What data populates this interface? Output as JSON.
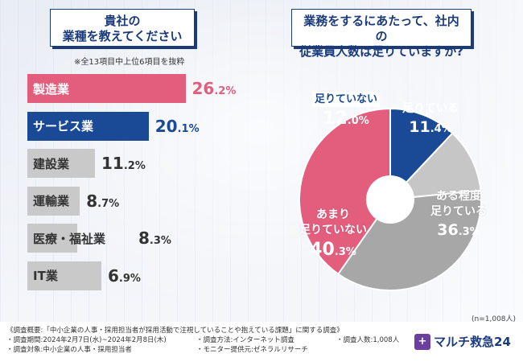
{
  "q1": {
    "line1": "貴社の",
    "line2": "業種を教えてください"
  },
  "q2": {
    "line1": "業務をするにあたって、社内の",
    "line2": "従業員人数は足りていますか?"
  },
  "note": "※全13項目中上位6項目を抜粋",
  "chart_data": [
    {
      "type": "bar",
      "orientation": "horizontal",
      "title": "貴社の業種を教えてください",
      "categories": [
        "製造業",
        "サービス業",
        "建設業",
        "運輸業",
        "医療・福祉業",
        "IT業"
      ],
      "values": [
        26.2,
        20.1,
        11.2,
        8.7,
        8.3,
        6.9
      ],
      "value_labels": [
        {
          "int": "26",
          "dec": ".2",
          "unit": "%"
        },
        {
          "int": "20",
          "dec": ".1",
          "unit": "%"
        },
        {
          "int": "11",
          "dec": ".2",
          "unit": "%"
        },
        {
          "int": "8",
          "dec": ".7",
          "unit": "%"
        },
        {
          "int": "8",
          "dec": ".3",
          "unit": "%"
        },
        {
          "int": "6",
          "dec": ".9",
          "unit": "%"
        }
      ],
      "colors": [
        "#e35d7d",
        "#1a4a96",
        "#c9c9c9",
        "#c9c9c9",
        "#c9c9c9",
        "#c9c9c9"
      ],
      "value_colors": [
        "#e35d7d",
        "#1a4a96",
        "#333333",
        "#333333",
        "#333333",
        "#333333"
      ],
      "label_colors": [
        "#ffffff",
        "#ffffff",
        "#333333",
        "#333333",
        "#333333",
        "#333333"
      ],
      "unit": "%"
    },
    {
      "type": "pie",
      "donut": true,
      "title": "業務をするにあたって、社内の従業員人数は足りていますか?",
      "slices": [
        {
          "label": "足りていない",
          "value": 12.0,
          "int": "12",
          "dec": ".0",
          "unit": "%",
          "color": "#1a4a96",
          "label_color": "#1a4a96",
          "value_color": "#ffffff"
        },
        {
          "label": "足りている",
          "value": 11.4,
          "int": "11",
          "dec": ".4",
          "unit": "%",
          "color": "#c6c6c6",
          "label_color": "#ffffff",
          "value_color": "#ffffff"
        },
        {
          "label_lines": [
            "ある程度",
            "足りている"
          ],
          "value": 36.3,
          "int": "36",
          "dec": ".3",
          "unit": "%",
          "color": "#a7a7a7",
          "label_color": "#ffffff",
          "value_color": "#ffffff"
        },
        {
          "label_lines": [
            "あまり",
            "足りていない"
          ],
          "value": 40.3,
          "int": "40",
          "dec": ".3",
          "unit": "%",
          "color": "#e35d7d",
          "label_color": "#ffffff",
          "value_color": "#ffffff"
        }
      ],
      "n_note": "(n=1,008人)"
    }
  ],
  "footer": {
    "overview": "《調査概要:「中小企業の人事・採用担当者が採用活動で注視していることや抱えている課題」に関する調査》",
    "period": "・調査期間:2024年2月7日(水)~2024年2月8日(木)",
    "method": "・調査方法:インターネット調査",
    "count": "・調査人数:1,008人",
    "target": "・調査対象:中小企業の人事・採用担当者",
    "provider": "・モニター提供元:ゼネラルリサーチ"
  },
  "logo": {
    "mark": "+",
    "text": "マルチ救急24",
    "mark_color": "#6b3fa0"
  }
}
